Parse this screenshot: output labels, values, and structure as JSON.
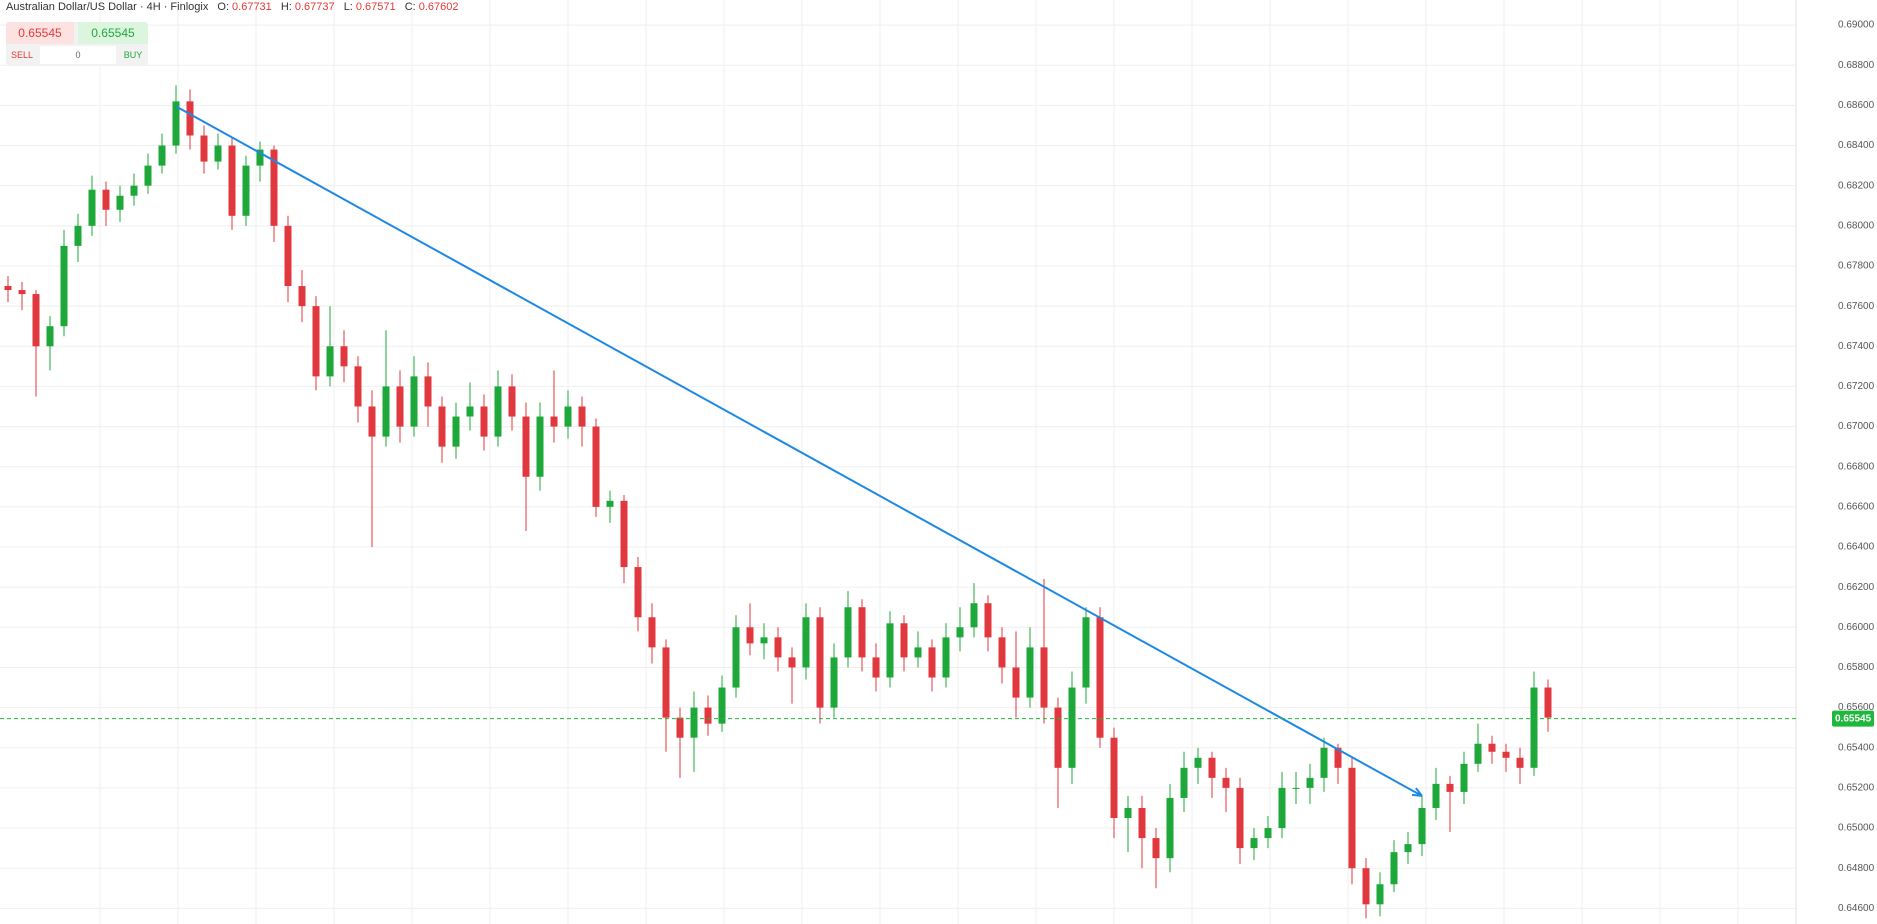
{
  "header": {
    "symbol": "Australian Dollar/US Dollar · 4H · Finlogix",
    "o_label": "O:",
    "open": 0.67731,
    "h_label": "H:",
    "high": 0.67737,
    "l_label": "L:",
    "low": 0.67571,
    "c_label": "C:",
    "close": 0.67602
  },
  "trade": {
    "sell_price": 0.65545,
    "sell": "SELL",
    "quantity": 0,
    "buy_price": 0.65545,
    "buy": "BUY"
  },
  "chart_data": {
    "type": "candlestick",
    "up_color": "#1fa83a",
    "down_color": "#e0383e",
    "ohlc": [
      [
        0.677,
        0.6775,
        0.6762,
        0.6768
      ],
      [
        0.6768,
        0.6772,
        0.6758,
        0.6766
      ],
      [
        0.6766,
        0.6768,
        0.6715,
        0.674
      ],
      [
        0.674,
        0.6755,
        0.6728,
        0.675
      ],
      [
        0.675,
        0.6798,
        0.6745,
        0.679
      ],
      [
        0.679,
        0.6806,
        0.6782,
        0.68
      ],
      [
        0.68,
        0.6825,
        0.6795,
        0.6818
      ],
      [
        0.6818,
        0.6822,
        0.68,
        0.6808
      ],
      [
        0.6808,
        0.682,
        0.6802,
        0.6815
      ],
      [
        0.6815,
        0.6826,
        0.681,
        0.682
      ],
      [
        0.682,
        0.6836,
        0.6816,
        0.683
      ],
      [
        0.683,
        0.6846,
        0.6826,
        0.684
      ],
      [
        0.684,
        0.687,
        0.6836,
        0.6862
      ],
      [
        0.6862,
        0.6868,
        0.6838,
        0.6845
      ],
      [
        0.6845,
        0.685,
        0.6826,
        0.6832
      ],
      [
        0.6832,
        0.6846,
        0.6828,
        0.684
      ],
      [
        0.684,
        0.6844,
        0.6798,
        0.6805
      ],
      [
        0.6805,
        0.6835,
        0.68,
        0.683
      ],
      [
        0.683,
        0.6842,
        0.6822,
        0.6838
      ],
      [
        0.6838,
        0.684,
        0.6792,
        0.68
      ],
      [
        0.68,
        0.6805,
        0.6762,
        0.677
      ],
      [
        0.677,
        0.6778,
        0.6752,
        0.676
      ],
      [
        0.676,
        0.6765,
        0.6718,
        0.6725
      ],
      [
        0.6725,
        0.676,
        0.672,
        0.674
      ],
      [
        0.674,
        0.6748,
        0.6722,
        0.673
      ],
      [
        0.673,
        0.6735,
        0.6702,
        0.671
      ],
      [
        0.671,
        0.6718,
        0.664,
        0.6695
      ],
      [
        0.6695,
        0.6748,
        0.669,
        0.672
      ],
      [
        0.672,
        0.6728,
        0.6692,
        0.67
      ],
      [
        0.67,
        0.6735,
        0.6695,
        0.6725
      ],
      [
        0.6725,
        0.6732,
        0.67,
        0.671
      ],
      [
        0.671,
        0.6715,
        0.6682,
        0.669
      ],
      [
        0.669,
        0.6712,
        0.6684,
        0.6705
      ],
      [
        0.6705,
        0.6722,
        0.6698,
        0.671
      ],
      [
        0.671,
        0.6716,
        0.6688,
        0.6695
      ],
      [
        0.6695,
        0.6728,
        0.669,
        0.672
      ],
      [
        0.672,
        0.6726,
        0.6698,
        0.6705
      ],
      [
        0.6705,
        0.6712,
        0.6648,
        0.6675
      ],
      [
        0.6675,
        0.6712,
        0.6668,
        0.6705
      ],
      [
        0.6705,
        0.6728,
        0.6692,
        0.67
      ],
      [
        0.67,
        0.6718,
        0.6694,
        0.671
      ],
      [
        0.671,
        0.6715,
        0.669,
        0.67
      ],
      [
        0.67,
        0.6704,
        0.6655,
        0.666
      ],
      [
        0.666,
        0.6668,
        0.6652,
        0.6663
      ],
      [
        0.6663,
        0.6666,
        0.6622,
        0.663
      ],
      [
        0.663,
        0.6635,
        0.6598,
        0.6605
      ],
      [
        0.6605,
        0.6612,
        0.6582,
        0.659
      ],
      [
        0.659,
        0.6594,
        0.6538,
        0.6555
      ],
      [
        0.6555,
        0.656,
        0.6525,
        0.6545
      ],
      [
        0.6545,
        0.6568,
        0.6528,
        0.656
      ],
      [
        0.656,
        0.6566,
        0.6546,
        0.6552
      ],
      [
        0.6552,
        0.6576,
        0.6548,
        0.657
      ],
      [
        0.657,
        0.6606,
        0.6565,
        0.66
      ],
      [
        0.66,
        0.6612,
        0.6586,
        0.6592
      ],
      [
        0.6592,
        0.6602,
        0.6584,
        0.6595
      ],
      [
        0.6595,
        0.66,
        0.6578,
        0.6585
      ],
      [
        0.6585,
        0.659,
        0.6562,
        0.658
      ],
      [
        0.658,
        0.6612,
        0.6574,
        0.6605
      ],
      [
        0.6605,
        0.661,
        0.6552,
        0.656
      ],
      [
        0.656,
        0.6592,
        0.6555,
        0.6585
      ],
      [
        0.6585,
        0.6618,
        0.658,
        0.661
      ],
      [
        0.661,
        0.6614,
        0.6578,
        0.6585
      ],
      [
        0.6585,
        0.6592,
        0.6568,
        0.6575
      ],
      [
        0.6575,
        0.6608,
        0.657,
        0.6602
      ],
      [
        0.6602,
        0.6606,
        0.6578,
        0.6585
      ],
      [
        0.6585,
        0.6598,
        0.658,
        0.659
      ],
      [
        0.659,
        0.6594,
        0.6568,
        0.6575
      ],
      [
        0.6575,
        0.6602,
        0.657,
        0.6595
      ],
      [
        0.6595,
        0.661,
        0.6588,
        0.66
      ],
      [
        0.66,
        0.6622,
        0.6595,
        0.6612
      ],
      [
        0.6612,
        0.6616,
        0.6588,
        0.6595
      ],
      [
        0.6595,
        0.66,
        0.6572,
        0.658
      ],
      [
        0.658,
        0.6598,
        0.6555,
        0.6565
      ],
      [
        0.6565,
        0.66,
        0.656,
        0.659
      ],
      [
        0.659,
        0.6624,
        0.6552,
        0.656
      ],
      [
        0.656,
        0.6565,
        0.651,
        0.653
      ],
      [
        0.653,
        0.6578,
        0.6522,
        0.657
      ],
      [
        0.657,
        0.661,
        0.6562,
        0.6605
      ],
      [
        0.6605,
        0.661,
        0.654,
        0.6545
      ],
      [
        0.6545,
        0.655,
        0.6495,
        0.6505
      ],
      [
        0.6505,
        0.6516,
        0.6488,
        0.651
      ],
      [
        0.651,
        0.6516,
        0.648,
        0.6495
      ],
      [
        0.6495,
        0.65,
        0.647,
        0.6485
      ],
      [
        0.6485,
        0.6522,
        0.6478,
        0.6515
      ],
      [
        0.6515,
        0.6538,
        0.6508,
        0.653
      ],
      [
        0.653,
        0.654,
        0.6522,
        0.6535
      ],
      [
        0.6535,
        0.6538,
        0.6515,
        0.6525
      ],
      [
        0.6525,
        0.653,
        0.6508,
        0.652
      ],
      [
        0.652,
        0.6525,
        0.6482,
        0.649
      ],
      [
        0.649,
        0.65,
        0.6484,
        0.6495
      ],
      [
        0.6495,
        0.6506,
        0.649,
        0.65
      ],
      [
        0.65,
        0.6528,
        0.6495,
        0.652
      ],
      [
        0.652,
        0.6528,
        0.6512,
        0.652
      ],
      [
        0.652,
        0.6532,
        0.6512,
        0.6525
      ],
      [
        0.6525,
        0.6545,
        0.6518,
        0.654
      ],
      [
        0.654,
        0.6542,
        0.6522,
        0.653
      ],
      [
        0.653,
        0.6535,
        0.6472,
        0.648
      ],
      [
        0.648,
        0.6485,
        0.6455,
        0.6462
      ],
      [
        0.6462,
        0.6478,
        0.6456,
        0.6472
      ],
      [
        0.6472,
        0.6494,
        0.6468,
        0.6488
      ],
      [
        0.6488,
        0.6498,
        0.6482,
        0.6492
      ],
      [
        0.6492,
        0.6516,
        0.6486,
        0.651
      ],
      [
        0.651,
        0.653,
        0.6504,
        0.6522
      ],
      [
        0.6522,
        0.6526,
        0.6498,
        0.6518
      ],
      [
        0.6518,
        0.6538,
        0.6512,
        0.6532
      ],
      [
        0.6532,
        0.6552,
        0.6528,
        0.6542
      ],
      [
        0.6542,
        0.6546,
        0.6532,
        0.6538
      ],
      [
        0.6538,
        0.6542,
        0.6528,
        0.6535
      ],
      [
        0.6535,
        0.654,
        0.6522,
        0.653
      ],
      [
        0.653,
        0.6578,
        0.6526,
        0.657
      ],
      [
        0.657,
        0.6574,
        0.6548,
        0.6555
      ]
    ],
    "ylim": [
      0.64522,
      0.69125
    ],
    "yticks": [
      {
        "value": 0.646,
        "label": "0.64600"
      },
      {
        "value": 0.648,
        "label": "0.64800"
      },
      {
        "value": 0.65,
        "label": "0.65000"
      },
      {
        "value": 0.652,
        "label": "0.65200"
      },
      {
        "value": 0.654,
        "label": "0.65400"
      },
      {
        "value": 0.656,
        "label": "0.65600"
      },
      {
        "value": 0.658,
        "label": "0.65800"
      },
      {
        "value": 0.66,
        "label": "0.66000"
      },
      {
        "value": 0.662,
        "label": "0.66200"
      },
      {
        "value": 0.664,
        "label": "0.66400"
      },
      {
        "value": 0.666,
        "label": "0.66600"
      },
      {
        "value": 0.668,
        "label": "0.66800"
      },
      {
        "value": 0.67,
        "label": "0.67000"
      },
      {
        "value": 0.672,
        "label": "0.67200"
      },
      {
        "value": 0.674,
        "label": "0.67400"
      },
      {
        "value": 0.676,
        "label": "0.67600"
      },
      {
        "value": 0.678,
        "label": "0.67800"
      },
      {
        "value": 0.68,
        "label": "0.68000"
      },
      {
        "value": 0.682,
        "label": "0.68200"
      },
      {
        "value": 0.684,
        "label": "0.68400"
      },
      {
        "value": 0.686,
        "label": "0.68600"
      },
      {
        "value": 0.688,
        "label": "0.68800"
      },
      {
        "value": 0.69,
        "label": "0.69000"
      }
    ],
    "grid": true,
    "last_price": 0.65545,
    "last_price_color": "#1fb83c",
    "trendline": {
      "x": [
        12,
        101
      ],
      "y": [
        0.68595,
        0.6516
      ],
      "color": "#1e88e5"
    }
  }
}
